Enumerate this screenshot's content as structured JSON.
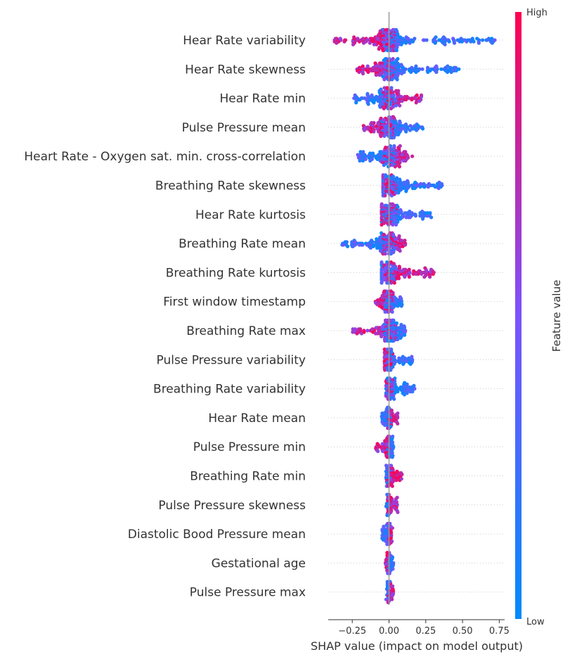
{
  "chart_data": {
    "type": "scatter",
    "subtype": "shap-beeswarm",
    "title": "",
    "xlabel": "SHAP value (impact on model output)",
    "ylabel": "",
    "xlim": [
      -0.42,
      0.78
    ],
    "xticks": [
      -0.25,
      0.0,
      0.25,
      0.5,
      0.75
    ],
    "xtick_labels": [
      "−0.25",
      "0.00",
      "0.25",
      "0.50",
      "0.75"
    ],
    "zero_line": 0.0,
    "grid": false,
    "row_guides": "dotted",
    "colorbar": {
      "label": "Feature value",
      "high_label": "High",
      "low_label": "Low",
      "low_color": "#008bfb",
      "mid_color": "#7c52ff",
      "high_color": "#ff0051"
    },
    "features": [
      {
        "name": "Hear Rate variability",
        "value_range": [
          -0.37,
          0.72
        ],
        "high_side": "negative"
      },
      {
        "name": "Hear Rate skewness",
        "value_range": [
          -0.22,
          0.48
        ],
        "high_side": "negative"
      },
      {
        "name": "Hear Rate min",
        "value_range": [
          -0.24,
          0.22
        ],
        "high_side": "positive"
      },
      {
        "name": "Pulse Pressure mean",
        "value_range": [
          -0.18,
          0.25
        ],
        "high_side": "negative"
      },
      {
        "name": "Heart Rate - Oxygen sat. min. cross-correlation",
        "value_range": [
          -0.22,
          0.16
        ],
        "high_side": "positive"
      },
      {
        "name": "Breathing Rate skewness",
        "value_range": [
          -0.04,
          0.38
        ],
        "high_side": "negative"
      },
      {
        "name": "Hear Rate kurtosis",
        "value_range": [
          -0.05,
          0.29
        ],
        "high_side": "negative"
      },
      {
        "name": "Breathing Rate mean",
        "value_range": [
          -0.32,
          0.11
        ],
        "high_side": "positive"
      },
      {
        "name": "Breathing Rate kurtosis",
        "value_range": [
          -0.05,
          0.31
        ],
        "high_side": "positive"
      },
      {
        "name": "First window timestamp",
        "value_range": [
          -0.11,
          0.09
        ],
        "high_side": "negative"
      },
      {
        "name": "Breathing Rate max",
        "value_range": [
          -0.26,
          0.12
        ],
        "high_side": "negative"
      },
      {
        "name": "Pulse Pressure variability",
        "value_range": [
          -0.03,
          0.16
        ],
        "high_side": "negative"
      },
      {
        "name": "Breathing Rate variability",
        "value_range": [
          -0.02,
          0.18
        ],
        "high_side": "negative"
      },
      {
        "name": "Hear Rate mean",
        "value_range": [
          -0.05,
          0.06
        ],
        "high_side": "positive"
      },
      {
        "name": "Pulse Pressure min",
        "value_range": [
          -0.09,
          0.03
        ],
        "high_side": "negative"
      },
      {
        "name": "Breathing Rate min",
        "value_range": [
          -0.02,
          0.09
        ],
        "high_side": "positive"
      },
      {
        "name": "Pulse Pressure skewness",
        "value_range": [
          -0.02,
          0.06
        ],
        "high_side": "positive"
      },
      {
        "name": "Diastolic Bood Pressure mean",
        "value_range": [
          -0.05,
          0.03
        ],
        "high_side": "positive"
      },
      {
        "name": "Gestational age",
        "value_range": [
          -0.03,
          0.03
        ],
        "high_side": "negative"
      },
      {
        "name": "Pulse Pressure max",
        "value_range": [
          -0.02,
          0.03
        ],
        "high_side": "positive"
      }
    ]
  }
}
